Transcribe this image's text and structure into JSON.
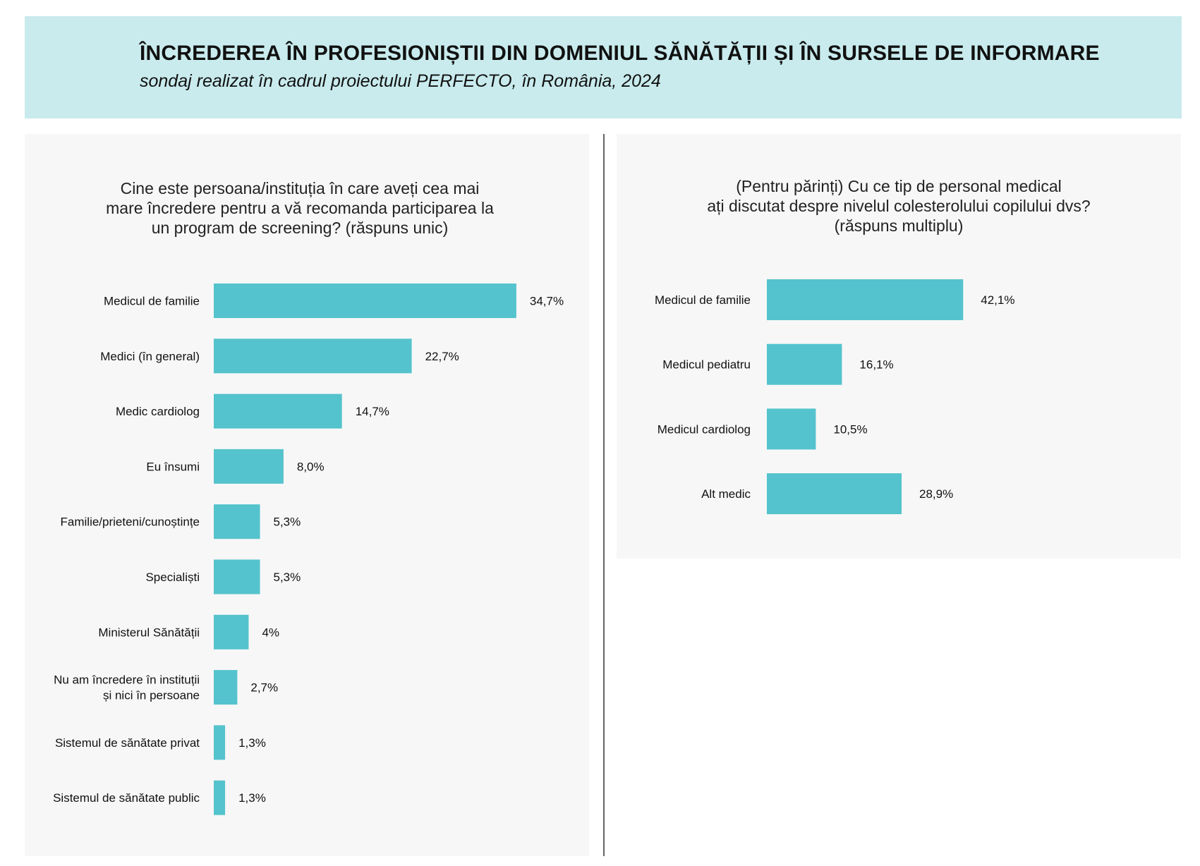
{
  "header": {
    "title": "ÎNCREDEREA ÎN PROFESIONIȘTII DIN DOMENIUL SĂNĂTĂȚII ȘI ÎN SURSELE DE INFORMARE",
    "subtitle": "sondaj realizat în cadrul proiectului PERFECTO, în România, 2024"
  },
  "colors": {
    "bar": "#54c3cd",
    "header_bg": "#c9ebed",
    "panel_bg": "#f7f7f7",
    "divider": "#666666"
  },
  "chart_data": [
    {
      "type": "bar",
      "orientation": "horizontal",
      "title": "Cine este persoana/instituția în care aveți cea mai\nmare încredere pentru a vă recomanda participarea la\nun program de screening? (răspuns unic)",
      "categories": [
        "Medicul de familie",
        "Medici (în general)",
        "Medic cardiolog",
        "Eu însumi",
        "Familie/prieteni/cunoștințe",
        "Specialiști",
        "Ministerul Sănătății",
        "Nu am încredere în instituții\nși nici în persoane",
        "Sistemul de sănătate privat",
        "Sistemul de sănătate public"
      ],
      "values": [
        34.7,
        22.7,
        14.7,
        8.0,
        5.3,
        5.3,
        4,
        2.7,
        1.3,
        1.3
      ],
      "value_labels": [
        "34,7%",
        "22,7%",
        "14,7%",
        "8,0%",
        "5,3%",
        "5,3%",
        "4%",
        "2,7%",
        "1,3%",
        "1,3%"
      ],
      "grid": false
    },
    {
      "type": "bar",
      "orientation": "horizontal",
      "title": "(Pentru părinți) Cu ce tip de personal medical\nați discutat despre nivelul colesterolului copilului dvs?\n(răspuns multiplu)",
      "categories": [
        "Medicul de familie",
        "Medicul pediatru",
        "Medicul cardiolog",
        "Alt medic"
      ],
      "values": [
        42.1,
        16.1,
        10.5,
        28.9
      ],
      "value_labels": [
        "42,1%",
        "16,1%",
        "10,5%",
        "28,9%"
      ],
      "grid": false
    }
  ]
}
